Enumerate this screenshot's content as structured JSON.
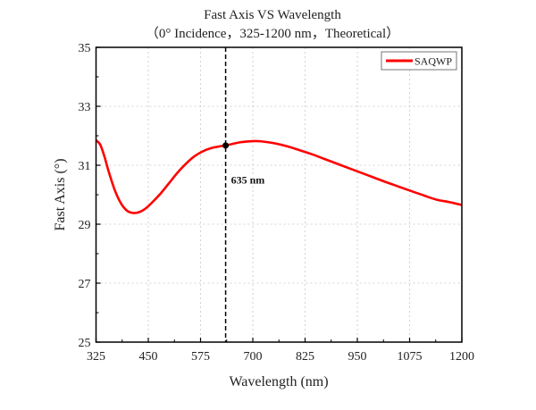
{
  "chart_data": {
    "type": "line",
    "title": "Fast Axis VS Wavelength",
    "subtitle": "（0° Incidence，325-1200 nm，Theoretical）",
    "xlabel": "Wavelength (nm)",
    "ylabel": "Fast Axis (°)",
    "xlim": [
      325,
      1200
    ],
    "ylim": [
      25,
      35
    ],
    "xticks": [
      325,
      450,
      575,
      700,
      825,
      950,
      1075,
      1200
    ],
    "yticks": [
      25,
      27,
      29,
      31,
      33,
      35
    ],
    "grid": true,
    "legend": {
      "position": "top-right",
      "entries": [
        "SAQWP"
      ]
    },
    "series": [
      {
        "name": "SAQWP",
        "color": "#ff0000",
        "x": [
          325,
          335,
          345,
          355,
          370,
          385,
          400,
          415,
          430,
          445,
          460,
          480,
          500,
          520,
          540,
          560,
          580,
          600,
          620,
          635,
          650,
          670,
          690,
          705,
          720,
          750,
          780,
          810,
          840,
          870,
          900,
          930,
          960,
          990,
          1020,
          1050,
          1080,
          1110,
          1140,
          1170,
          1200
        ],
        "y": [
          31.85,
          31.7,
          31.3,
          30.8,
          30.15,
          29.7,
          29.45,
          29.38,
          29.42,
          29.55,
          29.75,
          30.05,
          30.4,
          30.75,
          31.05,
          31.3,
          31.47,
          31.58,
          31.64,
          31.67,
          31.72,
          31.78,
          31.81,
          31.82,
          31.81,
          31.75,
          31.65,
          31.52,
          31.38,
          31.22,
          31.06,
          30.9,
          30.74,
          30.58,
          30.42,
          30.27,
          30.12,
          29.97,
          29.83,
          29.75,
          29.65
        ]
      }
    ],
    "annotations": [
      {
        "type": "vline",
        "x": 635,
        "label": "635 nm",
        "marker_y": 31.67
      }
    ]
  }
}
